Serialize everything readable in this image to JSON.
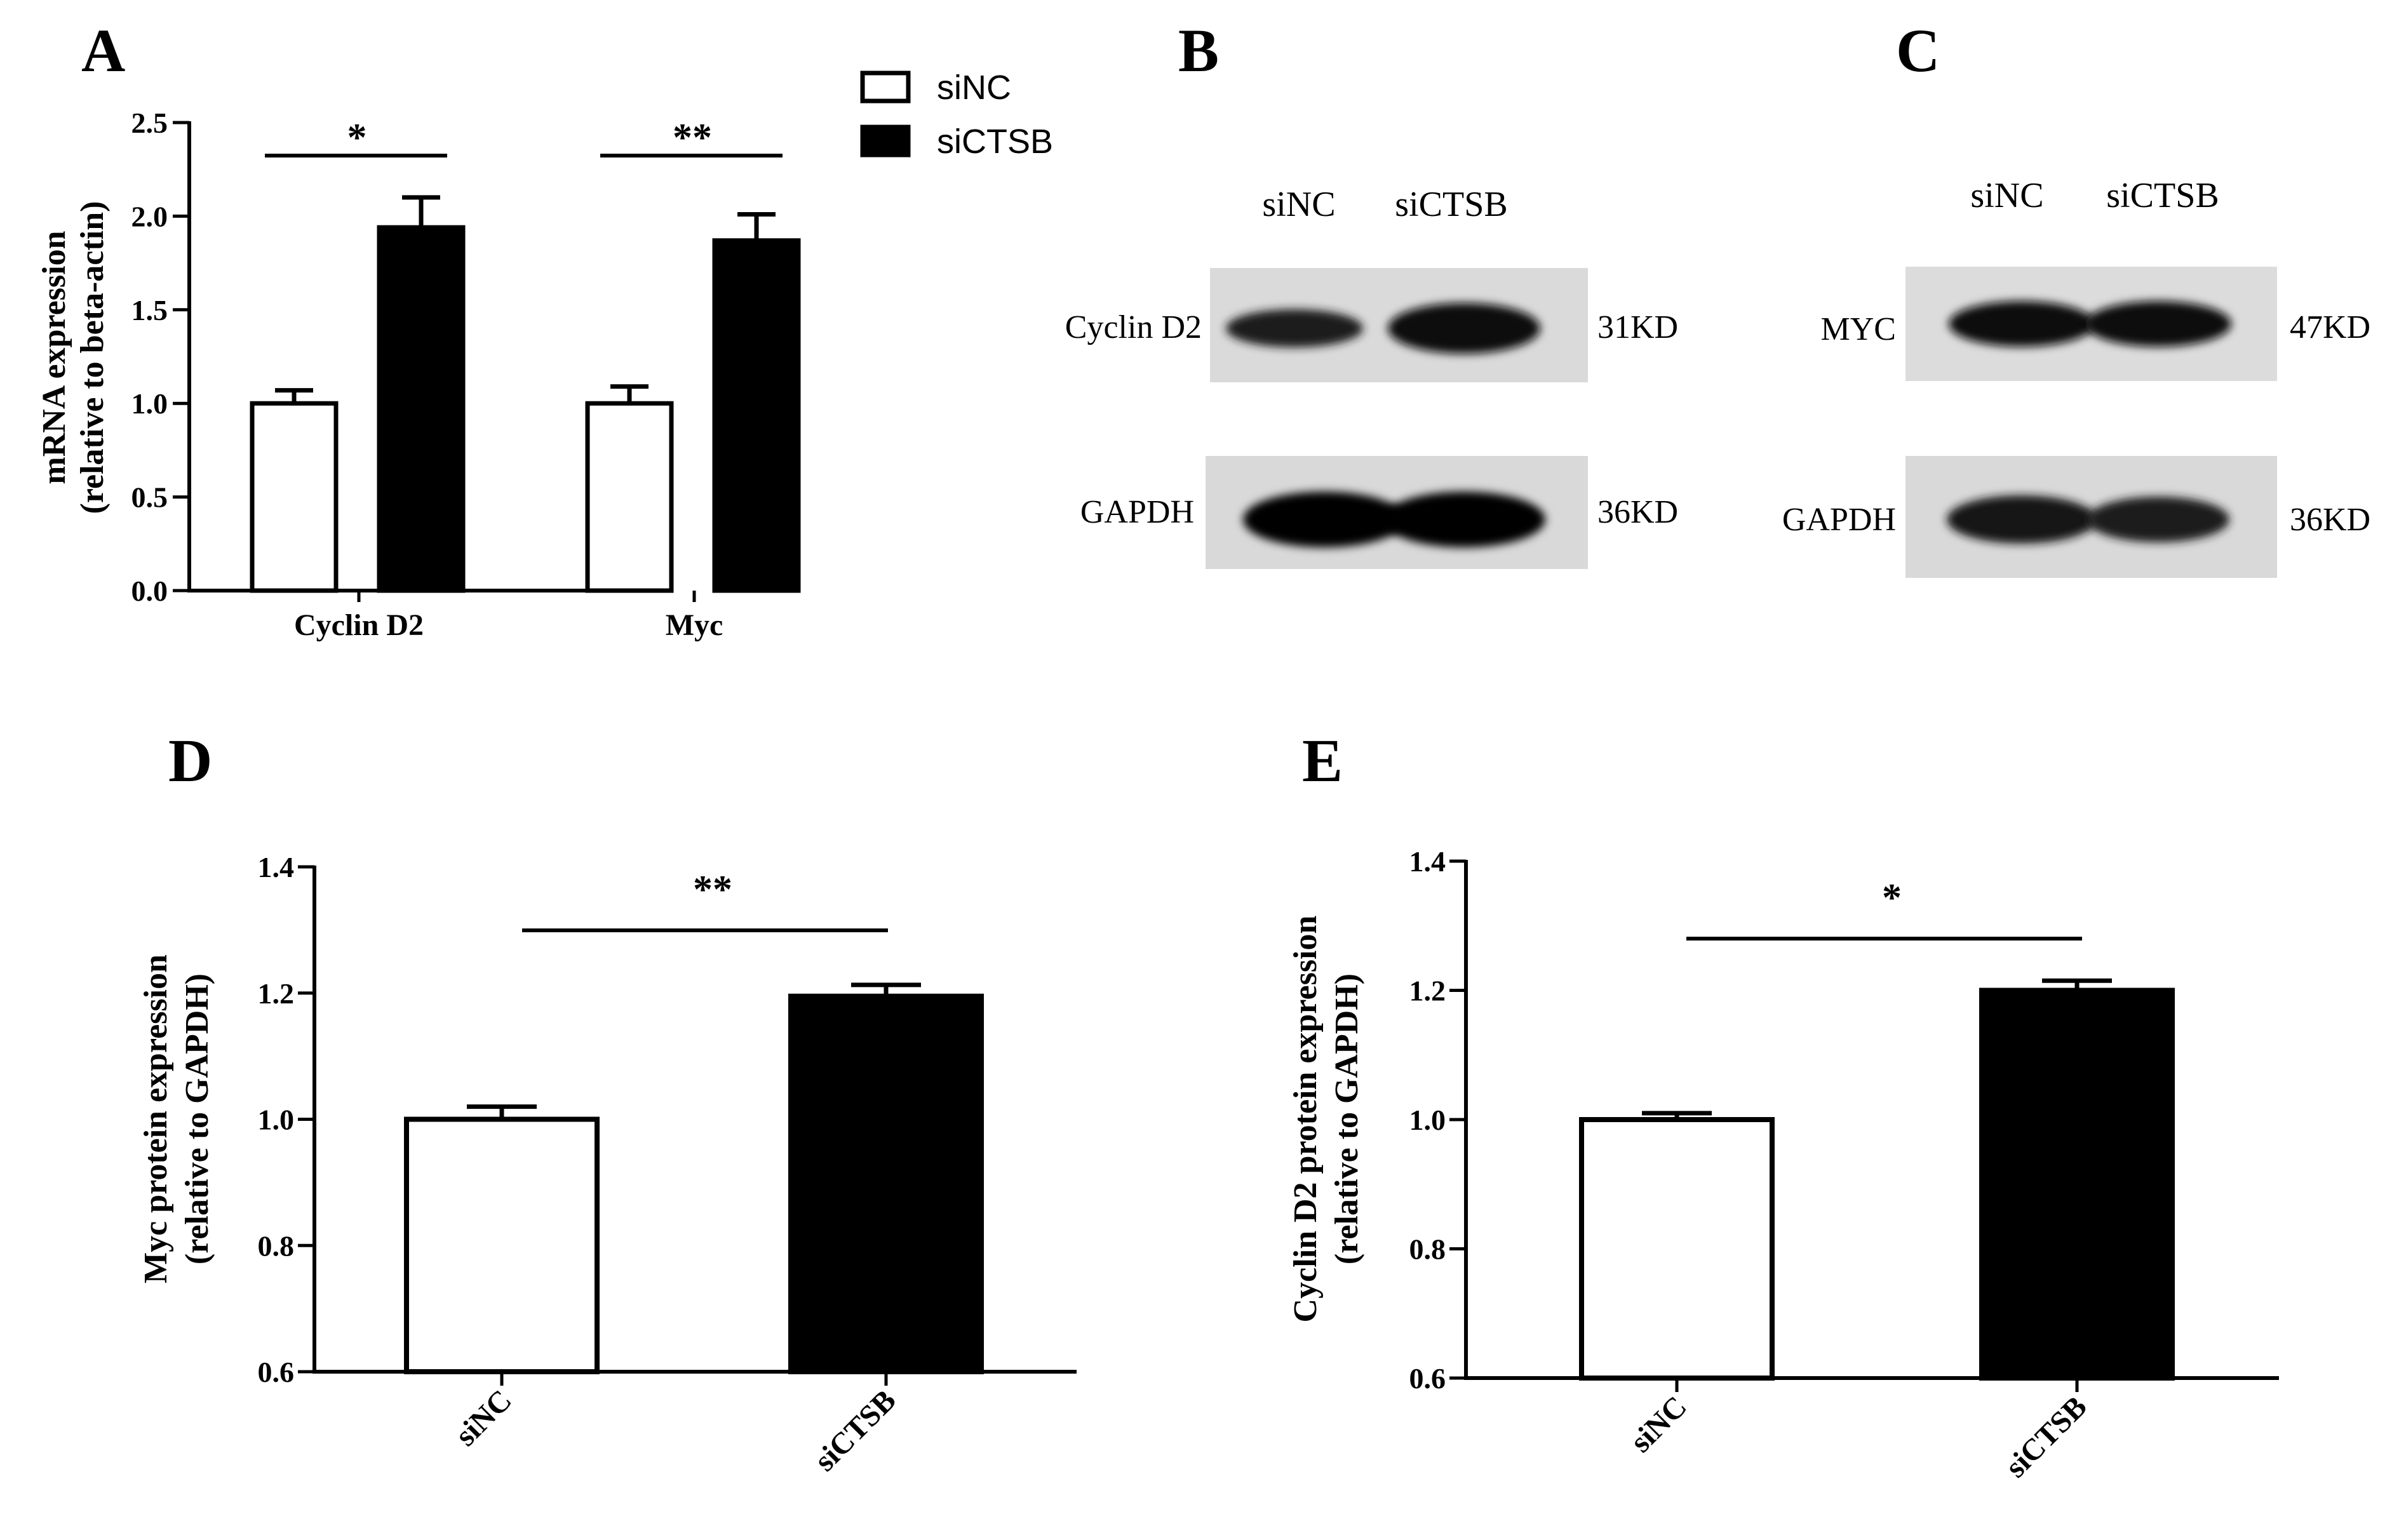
{
  "figure": {
    "colors": {
      "siNC": "#ffffff",
      "siCTSB": "#000000",
      "axis": "#000000"
    }
  },
  "chart_data": [
    {
      "panel": "A",
      "type": "bar",
      "ylabel_line1": "mRNA expression",
      "ylabel_line2": "(relative to beta-actin)",
      "ylim": [
        0,
        2.5
      ],
      "yticks": [
        "0.0",
        "0.5",
        "1.0",
        "1.5",
        "2.0",
        "2.5"
      ],
      "categories": [
        "Cyclin D2",
        "Myc"
      ],
      "series": [
        {
          "name": "siNC",
          "values": [
            1.0,
            1.0
          ],
          "errors": [
            0.07,
            0.09
          ]
        },
        {
          "name": "siCTSB",
          "values": [
            1.94,
            1.87
          ],
          "errors": [
            0.16,
            0.14
          ]
        }
      ],
      "significance": [
        "*",
        "**"
      ],
      "legend": [
        "siNC",
        "siCTSB"
      ],
      "legend_position": "top-right"
    },
    {
      "panel": "D",
      "type": "bar",
      "ylabel_line1": "Myc protein expression",
      "ylabel_line2": "(relative to GAPDH)",
      "ylim": [
        0.6,
        1.4
      ],
      "yticks": [
        "0.6",
        "0.8",
        "1.0",
        "1.2",
        "1.4"
      ],
      "categories": [
        "siNC",
        "siCTSB"
      ],
      "values": [
        1.0,
        1.195
      ],
      "errors": [
        0.02,
        0.018
      ],
      "significance": "**"
    },
    {
      "panel": "E",
      "type": "bar",
      "ylabel_line1": "Cyclin D2 protein expression",
      "ylabel_line2": "(relative to GAPDH)",
      "ylim": [
        0.6,
        1.4
      ],
      "yticks": [
        "0.6",
        "0.8",
        "1.0",
        "1.2",
        "1.4"
      ],
      "categories": [
        "siNC",
        "siCTSB"
      ],
      "values": [
        1.0,
        1.2
      ],
      "errors": [
        0.01,
        0.015
      ],
      "significance": "*"
    }
  ],
  "blots": [
    {
      "panel": "B",
      "lanes": [
        "siNC",
        "siCTSB"
      ],
      "rows": [
        {
          "protein": "Cyclin D2",
          "size": "31KD"
        },
        {
          "protein": "GAPDH",
          "size": "36KD"
        }
      ]
    },
    {
      "panel": "C",
      "lanes": [
        "siNC",
        "siCTSB"
      ],
      "rows": [
        {
          "protein": "MYC",
          "size": "47KD"
        },
        {
          "protein": "GAPDH",
          "size": "36KD"
        }
      ]
    }
  ]
}
